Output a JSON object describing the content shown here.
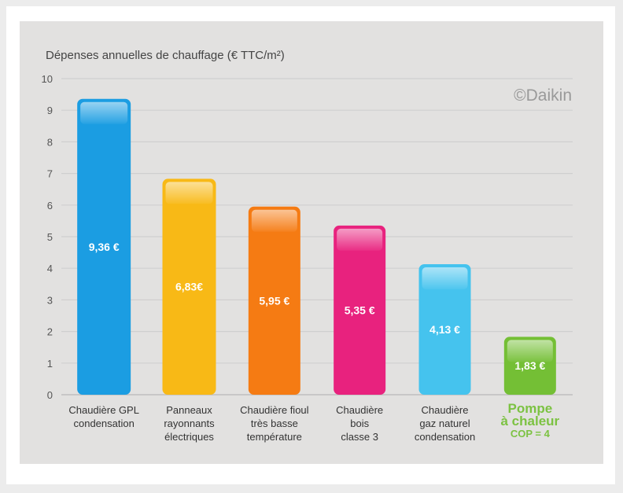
{
  "chart_data": {
    "type": "bar",
    "title": "Dépenses annuelles de chauffage (€ TTC/m²)",
    "watermark": "©Daikin",
    "ylim": [
      0,
      10
    ],
    "yticks": [
      "0",
      "1",
      "2",
      "3",
      "4",
      "5",
      "6",
      "7",
      "8",
      "9",
      "10"
    ],
    "grid": true,
    "categories": [
      [
        "Chaudière GPL",
        "condensation"
      ],
      [
        "Panneaux",
        "rayonnants",
        "électriques"
      ],
      [
        "Chaudière fioul",
        "très basse",
        "température"
      ],
      [
        "Chaudière",
        "bois",
        "classe 3"
      ],
      [
        "Chaudière",
        "gaz naturel",
        "condensation"
      ],
      [
        "Pompe",
        "à chaleur",
        "COP = 4"
      ]
    ],
    "values": [
      9.36,
      6.83,
      5.95,
      5.35,
      4.13,
      1.83
    ],
    "value_labels": [
      "9,36 €",
      "6,83€",
      "5,95 €",
      "5,35 €",
      "4,13 €",
      "1,83 €"
    ],
    "colors": [
      "#1b9de2",
      "#f8b916",
      "#f57b13",
      "#e8227e",
      "#45c3ee",
      "#74bf35"
    ],
    "highlight_index": 5,
    "highlight_color": "#7cc242"
  }
}
